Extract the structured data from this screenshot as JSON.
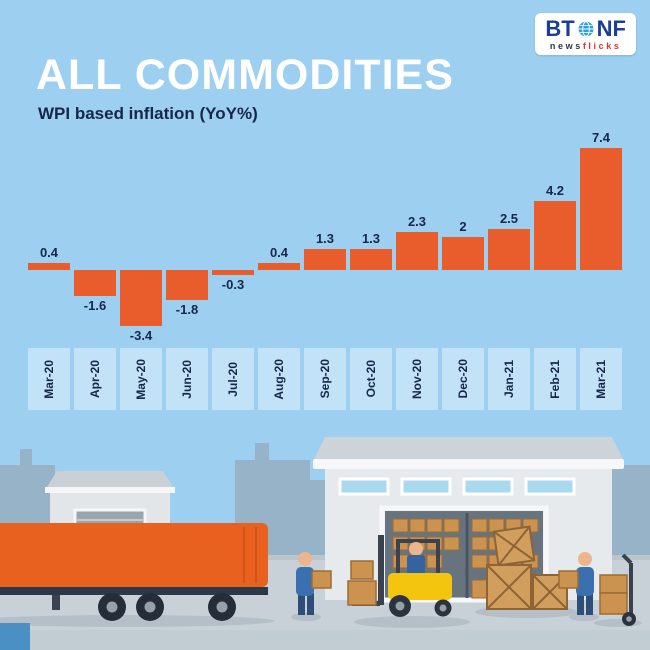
{
  "logo": {
    "bt": "BT",
    "nf": "NF",
    "tagline_news": "news",
    "tagline_flicks": "flicks"
  },
  "header": {
    "title": "ALL COMMODITIES",
    "subtitle": "WPI based inflation (YoY%)"
  },
  "chart_data": {
    "type": "bar",
    "title": "ALL COMMODITIES",
    "subtitle": "WPI based inflation (YoY%)",
    "categories": [
      "Mar-20",
      "Apr-20",
      "May-20",
      "Jun-20",
      "Jul-20",
      "Aug-20",
      "Sep-20",
      "Oct-20",
      "Nov-20",
      "Dec-20",
      "Jan-21",
      "Feb-21",
      "Mar-21"
    ],
    "values": [
      0.4,
      -1.6,
      -3.4,
      -1.8,
      -0.3,
      0.4,
      1.3,
      1.3,
      2.3,
      2,
      2.5,
      4.2,
      7.4
    ],
    "labels": [
      "0.4",
      "-1.6",
      "-3.4",
      "-1.8",
      "-0.3",
      "0.4",
      "1.3",
      "1.3",
      "2.3",
      "2",
      "2.5",
      "4.2",
      "7.4"
    ],
    "ylim": [
      -3.4,
      7.4
    ],
    "baseline": 0,
    "grid": false,
    "legend": "none",
    "bar_color": "#E85D2B",
    "band_color": "#C2E2F8",
    "label_color": "#16284A",
    "background_color": "#9CCFF0"
  }
}
